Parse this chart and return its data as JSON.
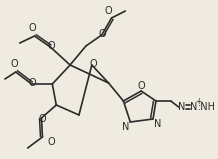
{
  "bg_color": "#f0ebe0",
  "line_color": "#2a2a2a",
  "lw": 1.2,
  "fs": 6.5,
  "figsize": [
    2.18,
    1.59
  ],
  "dpi": 100,
  "xlim": [
    0,
    218
  ],
  "ylim": [
    0,
    159
  ]
}
